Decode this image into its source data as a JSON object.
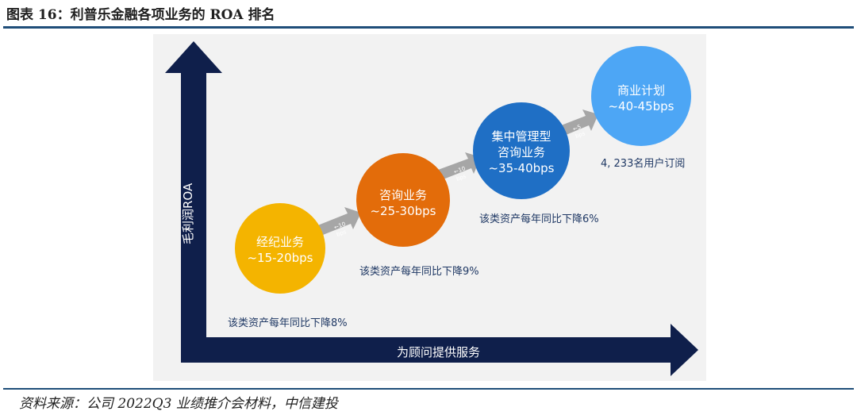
{
  "title": "图表 16：利普乐金融各项业务的 ROA 排名",
  "source": "资料来源：公司 2022Q3 业绩推介会材料，中信建投",
  "axes": {
    "y_label": "毛利润ROA",
    "x_label": "为顾问提供服务"
  },
  "stages": [
    {
      "name": "经纪业务",
      "roa": "~15-20bps",
      "note": "该类资产每年同比下降8%",
      "color": "#f4b400"
    },
    {
      "name": "咨询业务",
      "roa": "~25-30bps",
      "note": "该类资产每年同比下降9%",
      "color": "#e36c0a"
    },
    {
      "name_line1": "集中管理型",
      "name_line2": "咨询业务",
      "roa": "~35-40bps",
      "note": "该类资产每年同比下降6%",
      "color": "#1f6fc5"
    },
    {
      "name": "商业计划",
      "roa": "~40-45bps",
      "note": "4, 233名用户订阅",
      "color": "#4da6f5"
    }
  ],
  "gaps": [
    {
      "arrow": "←10",
      "unit": "bps"
    },
    {
      "arrow": "←10",
      "unit": "bps"
    },
    {
      "arrow": "←5",
      "unit": "bps"
    }
  ]
}
